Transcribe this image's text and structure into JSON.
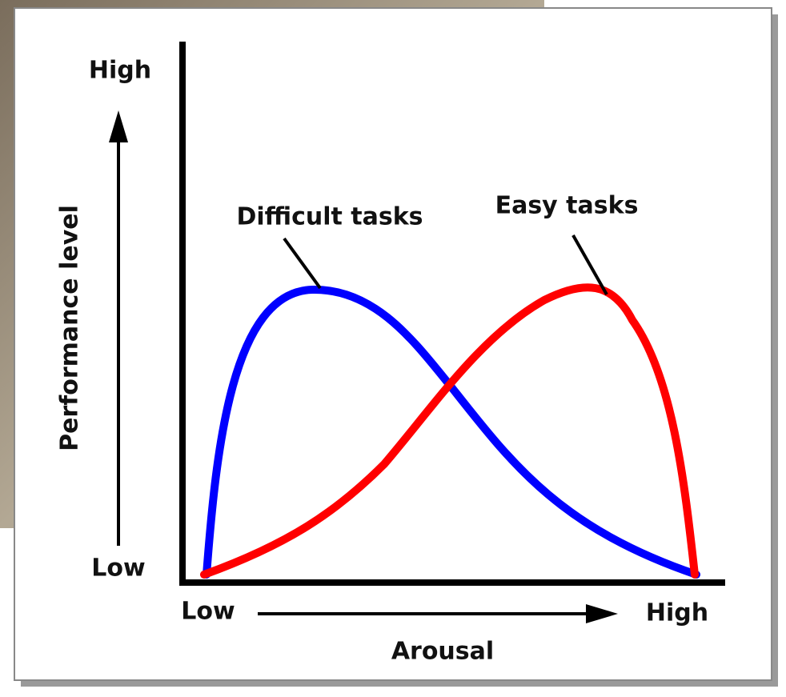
{
  "y_axis": {
    "label": "Performance level",
    "high": "High",
    "low": "Low"
  },
  "x_axis": {
    "label": "Arousal",
    "low": "Low",
    "high": "High"
  },
  "curves": [
    {
      "label": "Difficult tasks"
    },
    {
      "label": "Easy tasks"
    }
  ]
}
